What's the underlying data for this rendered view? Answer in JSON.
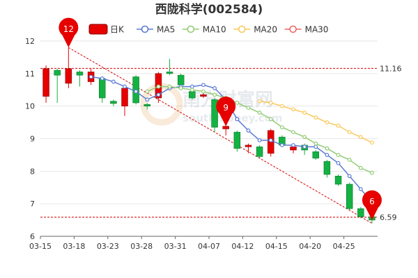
{
  "chart_data": {
    "type": "candlestick",
    "title": "西陇科学(002584)",
    "legend": [
      {
        "name": "日K",
        "kind": "kline",
        "color": "#e60000"
      },
      {
        "name": "MA5",
        "kind": "ma",
        "color": "#5b7bd5"
      },
      {
        "name": "MA10",
        "kind": "ma",
        "color": "#91cc75"
      },
      {
        "name": "MA20",
        "kind": "ma",
        "color": "#fac858"
      },
      {
        "name": "MA30",
        "kind": "ma",
        "color": "#ee6666"
      }
    ],
    "ylim": [
      6,
      12
    ],
    "yticks": [
      6,
      7,
      8,
      9,
      10,
      11,
      12
    ],
    "xtick_labels": [
      {
        "index": 0,
        "label": "03-15"
      },
      {
        "index": 3,
        "label": "03-18"
      },
      {
        "index": 6,
        "label": "03-23"
      },
      {
        "index": 9,
        "label": "03-28"
      },
      {
        "index": 12,
        "label": "03-31"
      },
      {
        "index": 15,
        "label": "04-07"
      },
      {
        "index": 18,
        "label": "04-12"
      },
      {
        "index": 21,
        "label": "04-15"
      },
      {
        "index": 24,
        "label": "04-20"
      },
      {
        "index": 27,
        "label": "04-25"
      }
    ],
    "candles": [
      {
        "o": 10.3,
        "c": 11.15,
        "h": 11.25,
        "l": 10.1
      },
      {
        "o": 11.1,
        "c": 10.95,
        "h": 11.15,
        "l": 10.1
      },
      {
        "o": 10.7,
        "c": 11.15,
        "h": 11.8,
        "l": 10.55
      },
      {
        "o": 11.05,
        "c": 10.95,
        "h": 11.1,
        "l": 10.6
      },
      {
        "o": 10.75,
        "c": 11.05,
        "h": 11.15,
        "l": 10.65
      },
      {
        "o": 10.85,
        "c": 10.25,
        "h": 10.9,
        "l": 10.1
      },
      {
        "o": 10.15,
        "c": 10.08,
        "h": 10.2,
        "l": 10.0
      },
      {
        "o": 10.0,
        "c": 10.55,
        "h": 10.6,
        "l": 9.7
      },
      {
        "o": 10.9,
        "c": 10.1,
        "h": 10.95,
        "l": 10.05
      },
      {
        "o": 10.05,
        "c": 10.0,
        "h": 10.1,
        "l": 9.9
      },
      {
        "o": 10.25,
        "c": 11.0,
        "h": 11.05,
        "l": 10.1
      },
      {
        "o": 11.05,
        "c": 11.0,
        "h": 11.45,
        "l": 10.95
      },
      {
        "o": 10.95,
        "c": 10.65,
        "h": 11.0,
        "l": 10.6
      },
      {
        "o": 10.45,
        "c": 10.25,
        "h": 10.5,
        "l": 10.2
      },
      {
        "o": 10.3,
        "c": 10.35,
        "h": 10.45,
        "l": 10.25
      },
      {
        "o": 10.2,
        "c": 9.35,
        "h": 10.25,
        "l": 9.2
      },
      {
        "o": 9.3,
        "c": 9.38,
        "h": 9.4,
        "l": 9.1
      },
      {
        "o": 9.2,
        "c": 8.7,
        "h": 9.25,
        "l": 8.6
      },
      {
        "o": 8.75,
        "c": 8.8,
        "h": 8.85,
        "l": 8.55
      },
      {
        "o": 8.75,
        "c": 8.45,
        "h": 8.8,
        "l": 8.4
      },
      {
        "o": 8.55,
        "c": 9.25,
        "h": 9.3,
        "l": 8.45
      },
      {
        "o": 9.05,
        "c": 8.8,
        "h": 9.1,
        "l": 8.75
      },
      {
        "o": 8.65,
        "c": 8.75,
        "h": 8.85,
        "l": 8.55
      },
      {
        "o": 8.8,
        "c": 8.65,
        "h": 8.85,
        "l": 8.5
      },
      {
        "o": 8.6,
        "c": 8.4,
        "h": 8.65,
        "l": 8.35
      },
      {
        "o": 8.3,
        "c": 7.9,
        "h": 8.35,
        "l": 7.8
      },
      {
        "o": 7.85,
        "c": 7.6,
        "h": 7.9,
        "l": 7.55
      },
      {
        "o": 7.6,
        "c": 6.85,
        "h": 7.65,
        "l": 6.8
      },
      {
        "o": 6.85,
        "c": 6.6,
        "h": 6.9,
        "l": 6.55
      },
      {
        "o": 6.6,
        "c": 6.5,
        "h": 6.8,
        "l": 6.4
      }
    ],
    "ma": {
      "MA5": [
        null,
        null,
        null,
        null,
        10.9,
        10.85,
        10.75,
        10.6,
        10.45,
        10.2,
        10.35,
        10.55,
        10.6,
        10.6,
        10.65,
        10.55,
        10.2,
        9.6,
        9.25,
        8.95,
        8.95,
        8.8,
        8.8,
        8.75,
        8.75,
        8.5,
        8.25,
        7.85,
        7.45,
        7.05
      ],
      "MA10": [
        null,
        null,
        null,
        null,
        null,
        null,
        null,
        null,
        null,
        10.45,
        10.6,
        10.6,
        10.55,
        10.5,
        10.45,
        10.35,
        10.25,
        10.1,
        9.95,
        9.8,
        9.6,
        9.35,
        9.2,
        9.05,
        8.85,
        8.7,
        8.5,
        8.35,
        8.1,
        7.95
      ],
      "MA20": [
        null,
        null,
        null,
        null,
        null,
        null,
        null,
        null,
        null,
        null,
        null,
        null,
        null,
        null,
        null,
        null,
        null,
        null,
        null,
        10.15,
        10.1,
        10.0,
        9.9,
        9.8,
        9.65,
        9.5,
        9.4,
        9.2,
        9.05,
        8.88
      ],
      "MA30": []
    },
    "reference_lines": [
      {
        "value": 11.16,
        "label": "11.16"
      },
      {
        "value": 6.59,
        "label": "6.59"
      }
    ],
    "pins": [
      {
        "index": 2,
        "value": 11.8,
        "label": "12"
      },
      {
        "index": 16,
        "value": 9.38,
        "label": "9"
      },
      {
        "index": 29,
        "value": 6.5,
        "label": "6"
      }
    ],
    "trendline": {
      "from": {
        "index": 2,
        "value": 11.8
      },
      "to": {
        "index": 29,
        "value": 6.4
      }
    }
  }
}
